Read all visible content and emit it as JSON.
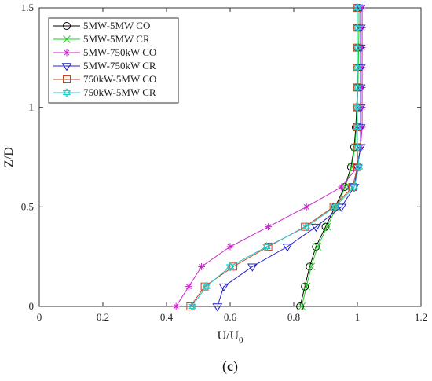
{
  "chart_data": {
    "type": "line",
    "panel_label_open": "(",
    "panel_label_letter": "c",
    "panel_label_close": ")",
    "xlabel": "U/U",
    "xlabel_sub": "0",
    "ylabel": "Z/D",
    "xlim": [
      0,
      1.2
    ],
    "ylim": [
      0,
      1.5
    ],
    "xticks": [
      0,
      0.2,
      0.4,
      0.6,
      0.8,
      1,
      1.2
    ],
    "yticks": [
      0,
      0.5,
      1,
      1.5
    ],
    "xtick_labels": [
      "0",
      "0.2",
      "0.4",
      "0.6",
      "0.8",
      "1",
      "1.2"
    ],
    "ytick_labels": [
      "0",
      "0.5",
      "1",
      "1.5"
    ],
    "grid": false,
    "legend_position": "top-left",
    "series": [
      {
        "name": "5MW-5MW CO",
        "color": "#000000",
        "marker": "circle",
        "x": [
          0.82,
          0.835,
          0.85,
          0.87,
          0.9,
          0.93,
          0.96,
          0.98,
          0.99,
          0.995,
          0.998,
          1.0,
          1.0,
          1.0,
          1.0,
          1.0
        ],
        "y": [
          0,
          0.1,
          0.2,
          0.3,
          0.4,
          0.5,
          0.6,
          0.7,
          0.8,
          0.9,
          1.0,
          1.1,
          1.2,
          1.3,
          1.4,
          1.5
        ]
      },
      {
        "name": "5MW-5MW CR",
        "color": "#22cc22",
        "marker": "x",
        "x": [
          0.825,
          0.84,
          0.855,
          0.875,
          0.905,
          0.935,
          0.962,
          0.982,
          0.992,
          0.997,
          1.0,
          1.002,
          1.003,
          1.004,
          1.005,
          1.005
        ],
        "y": [
          0,
          0.1,
          0.2,
          0.3,
          0.4,
          0.5,
          0.6,
          0.7,
          0.8,
          0.9,
          1.0,
          1.1,
          1.2,
          1.3,
          1.4,
          1.5
        ]
      },
      {
        "name": "5MW-750kW CO",
        "color": "#cc22cc",
        "marker": "asterisk",
        "x": [
          0.43,
          0.47,
          0.51,
          0.6,
          0.72,
          0.84,
          0.95,
          1.0,
          1.01,
          1.015,
          1.015,
          1.015,
          1.015,
          1.015,
          1.015,
          1.015
        ],
        "y": [
          0,
          0.1,
          0.2,
          0.3,
          0.4,
          0.5,
          0.6,
          0.7,
          0.8,
          0.9,
          1.0,
          1.1,
          1.2,
          1.3,
          1.4,
          1.5
        ]
      },
      {
        "name": "5MW-750kW CR",
        "color": "#2222cc",
        "marker": "triangle-down",
        "x": [
          0.56,
          0.58,
          0.67,
          0.78,
          0.87,
          0.95,
          0.99,
          1.0,
          1.01,
          1.01,
          1.01,
          1.01,
          1.01,
          1.01,
          1.01,
          1.01
        ],
        "y": [
          0,
          0.1,
          0.2,
          0.3,
          0.4,
          0.5,
          0.6,
          0.7,
          0.8,
          0.9,
          1.0,
          1.1,
          1.2,
          1.3,
          1.4,
          1.5
        ]
      },
      {
        "name": "750kW-5MW CO",
        "color": "#cc4422",
        "marker": "square",
        "x": [
          0.475,
          0.52,
          0.61,
          0.72,
          0.835,
          0.925,
          0.985,
          1.0,
          1.0,
          1.0,
          1.0,
          1.0,
          1.0,
          1.0,
          1.0,
          1.0
        ],
        "y": [
          0,
          0.1,
          0.2,
          0.3,
          0.4,
          0.5,
          0.6,
          0.7,
          0.8,
          0.9,
          1.0,
          1.1,
          1.2,
          1.3,
          1.4,
          1.5
        ]
      },
      {
        "name": "750kW-5MW CR",
        "color": "#22cccc",
        "marker": "hexagram",
        "x": [
          0.48,
          0.525,
          0.6,
          0.715,
          0.84,
          0.93,
          0.99,
          1.005,
          1.0,
          1.0,
          1.0,
          1.0,
          1.0,
          1.0,
          1.0,
          1.0
        ],
        "y": [
          0,
          0.1,
          0.2,
          0.3,
          0.4,
          0.5,
          0.6,
          0.7,
          0.8,
          0.9,
          1.0,
          1.1,
          1.2,
          1.3,
          1.4,
          1.5
        ]
      }
    ]
  }
}
